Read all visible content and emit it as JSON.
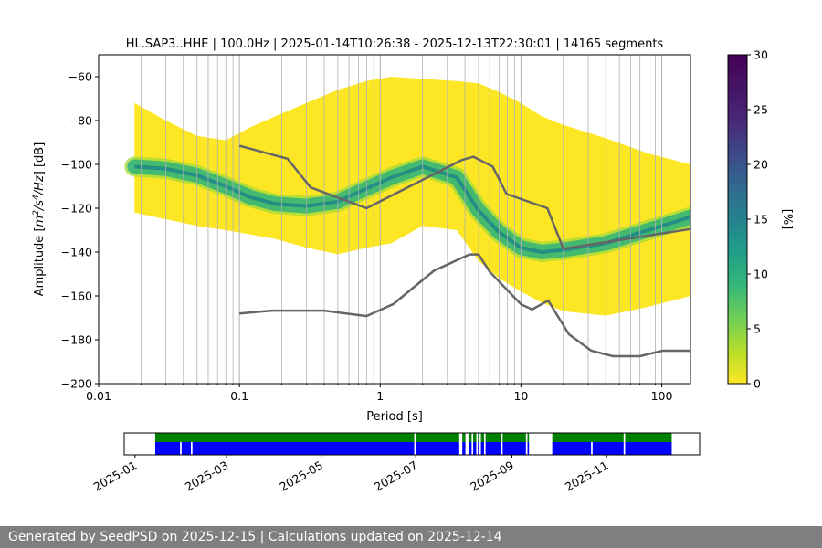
{
  "chart_data": [
    {
      "type": "heatmap",
      "title": "HL.SAP3..HHE | 100.0Hz | 2025-01-14T10:26:38 - 2025-12-13T22:30:01 | 14165 segments",
      "xlabel": "Period [s]",
      "ylabel_prefix": "Amplitude [",
      "ylabel_suffix": "] [dB]",
      "ylabel_unit_base": "m",
      "ylabel_unit_exp1": "2",
      "ylabel_unit_mid": "/s",
      "ylabel_unit_exp2": "4",
      "ylabel_unit_tail": "/Hz",
      "x_scale": "log",
      "xlim": [
        0.01,
        160
      ],
      "ylim": [
        -200,
        -50
      ],
      "x_ticks": [
        0.01,
        0.1,
        1,
        10,
        100
      ],
      "x_tick_labels": [
        "0.01",
        "0.1",
        "1",
        "10",
        "100"
      ],
      "y_ticks": [
        -200,
        -180,
        -160,
        -140,
        -120,
        -100,
        -80,
        -60
      ],
      "y_tick_labels": [
        "−200",
        "−180",
        "−160",
        "−140",
        "−120",
        "−100",
        "−80",
        "−60"
      ],
      "grid": "x major and minor",
      "colorbar": {
        "label": "[%]",
        "range": [
          0,
          30
        ],
        "ticks": [
          0,
          5,
          10,
          15,
          20,
          25,
          30
        ],
        "tick_labels": [
          "0",
          "5",
          "10",
          "15",
          "20",
          "25",
          "30"
        ],
        "colormap": "viridis_r"
      },
      "psd_mode": {
        "x": [
          0.018,
          0.03,
          0.05,
          0.08,
          0.12,
          0.18,
          0.3,
          0.5,
          0.8,
          1.2,
          2,
          3.5,
          5,
          7,
          10,
          14,
          20,
          40,
          80,
          160
        ],
        "y": [
          -101,
          -102,
          -105,
          -110,
          -115,
          -118,
          -119,
          -117,
          -111,
          -106,
          -101,
          -106,
          -121,
          -131,
          -138,
          -140,
          -139,
          -136,
          -130,
          -124
        ]
      },
      "psd_band": {
        "x": [
          0.018,
          0.03,
          0.05,
          0.08,
          0.12,
          0.18,
          0.3,
          0.5,
          0.8,
          1.2,
          2,
          3.5,
          5,
          7,
          10,
          14,
          20,
          40,
          80,
          160
        ],
        "upper": [
          -72,
          -80,
          -87,
          -89,
          -83,
          -78,
          -72,
          -66,
          -62,
          -60,
          -61,
          -62,
          -63,
          -67,
          -72,
          -78,
          -82,
          -88,
          -95,
          -100
        ],
        "lower": [
          -122,
          -125,
          -128,
          -130,
          -132,
          -134,
          -138,
          -141,
          -138,
          -136,
          -128,
          -130,
          -144,
          -152,
          -158,
          -163,
          -167,
          -169,
          -165,
          -160
        ]
      },
      "noise_models": [
        {
          "x": [
            0.1,
            0.22,
            0.32,
            0.8,
            3.8,
            4.6,
            6.3,
            7.9,
            15.4,
            20,
            354.8
          ],
          "y": [
            -91.5,
            -97.4,
            -110.5,
            -120,
            -98,
            -96.5,
            -101,
            -113.5,
            -120,
            -138.5,
            -126
          ]
        },
        {
          "x": [
            0.1,
            0.17,
            0.4,
            0.8,
            1.24,
            2.4,
            4.3,
            5,
            6,
            10,
            12,
            15.6,
            21.9,
            31.6,
            45,
            70,
            101,
            154,
            328
          ],
          "y": [
            -168,
            -166.7,
            -166.7,
            -169.2,
            -163.7,
            -148.6,
            -141.1,
            -141.1,
            -149,
            -163.8,
            -166.2,
            -162.1,
            -177.5,
            -185,
            -187.5,
            -187.5,
            -185,
            -185,
            -187.5
          ]
        }
      ],
      "noise_model_color": "#666666"
    },
    {
      "type": "timeline",
      "date_ticks": [
        "2025-01",
        "2025-03",
        "2025-05",
        "2025-07",
        "2025-09",
        "2025-11"
      ],
      "date_tick_values": [
        "2025-01-01",
        "2025-03-01",
        "2025-05-01",
        "2025-07-01",
        "2025-09-01",
        "2025-11-01"
      ],
      "range": [
        "2024-12-25",
        "2025-12-31"
      ],
      "coverage_color": "#008000",
      "psd_color": "#0000ff",
      "coverage": [
        [
          "2025-01-14",
          "2025-06-30"
        ],
        [
          "2025-07-01",
          "2025-07-29"
        ],
        [
          "2025-07-31",
          "2025-08-02"
        ],
        [
          "2025-08-04",
          "2025-08-06"
        ],
        [
          "2025-08-07",
          "2025-08-09"
        ],
        [
          "2025-08-10",
          "2025-08-11"
        ],
        [
          "2025-08-12",
          "2025-08-14"
        ],
        [
          "2025-08-15",
          "2025-08-25"
        ],
        [
          "2025-08-26",
          "2025-09-10"
        ],
        [
          "2025-09-11",
          "2025-09-12"
        ],
        [
          "2025-09-27",
          "2025-11-12"
        ],
        [
          "2025-11-13",
          "2025-12-13"
        ]
      ],
      "psd": [
        [
          "2025-01-14",
          "2025-01-30"
        ],
        [
          "2025-01-31",
          "2025-02-06"
        ],
        [
          "2025-02-07",
          "2025-06-30"
        ],
        [
          "2025-07-01",
          "2025-07-29"
        ],
        [
          "2025-07-31",
          "2025-08-02"
        ],
        [
          "2025-08-04",
          "2025-08-06"
        ],
        [
          "2025-08-07",
          "2025-08-09"
        ],
        [
          "2025-08-10",
          "2025-08-11"
        ],
        [
          "2025-08-12",
          "2025-08-14"
        ],
        [
          "2025-08-15",
          "2025-08-25"
        ],
        [
          "2025-08-26",
          "2025-09-10"
        ],
        [
          "2025-09-11",
          "2025-09-12"
        ],
        [
          "2025-09-27",
          "2025-10-22"
        ],
        [
          "2025-10-23",
          "2025-11-12"
        ],
        [
          "2025-11-13",
          "2025-12-13"
        ]
      ]
    }
  ],
  "footer": {
    "text": "Generated by SeedPSD on 2025-12-15 | Calculations updated on 2025-12-14"
  }
}
